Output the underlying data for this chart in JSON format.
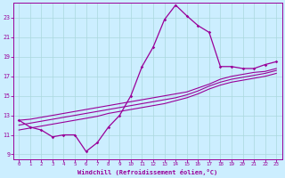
{
  "xlabel": "Windchill (Refroidissement éolien,°C)",
  "bg_color": "#cceeff",
  "grid_color": "#aad8dd",
  "line_color": "#990099",
  "x_main": [
    0,
    1,
    2,
    3,
    4,
    5,
    6,
    7,
    8,
    9,
    10,
    11,
    12,
    13,
    14,
    15,
    16,
    17,
    18,
    19,
    20,
    21,
    22,
    23
  ],
  "y_main": [
    12.5,
    11.8,
    11.5,
    10.8,
    11.0,
    11.0,
    9.3,
    10.2,
    11.8,
    13.0,
    15.0,
    18.0,
    20.0,
    22.8,
    24.3,
    23.2,
    22.2,
    21.5,
    18.0,
    18.0,
    17.8,
    17.8,
    18.2,
    18.5
  ],
  "y_line1": [
    12.5,
    12.6,
    12.8,
    13.0,
    13.2,
    13.4,
    13.6,
    13.8,
    14.0,
    14.2,
    14.4,
    14.6,
    14.8,
    15.0,
    15.2,
    15.4,
    15.8,
    16.2,
    16.7,
    17.0,
    17.2,
    17.4,
    17.5,
    17.8
  ],
  "y_line2": [
    12.0,
    12.2,
    12.4,
    12.6,
    12.8,
    13.0,
    13.2,
    13.4,
    13.6,
    13.8,
    14.0,
    14.2,
    14.4,
    14.6,
    14.8,
    15.1,
    15.5,
    16.0,
    16.4,
    16.7,
    16.9,
    17.1,
    17.3,
    17.6
  ],
  "y_line3": [
    11.5,
    11.7,
    11.9,
    12.1,
    12.3,
    12.5,
    12.7,
    12.9,
    13.2,
    13.4,
    13.6,
    13.8,
    14.0,
    14.2,
    14.5,
    14.8,
    15.2,
    15.7,
    16.1,
    16.4,
    16.6,
    16.8,
    17.0,
    17.3
  ],
  "xlim": [
    -0.5,
    23.5
  ],
  "ylim": [
    8.5,
    24.5
  ],
  "xticks": [
    0,
    1,
    2,
    3,
    4,
    5,
    6,
    7,
    8,
    9,
    10,
    11,
    12,
    13,
    14,
    15,
    16,
    17,
    18,
    19,
    20,
    21,
    22,
    23
  ],
  "yticks": [
    9,
    11,
    13,
    15,
    17,
    19,
    21,
    23
  ]
}
